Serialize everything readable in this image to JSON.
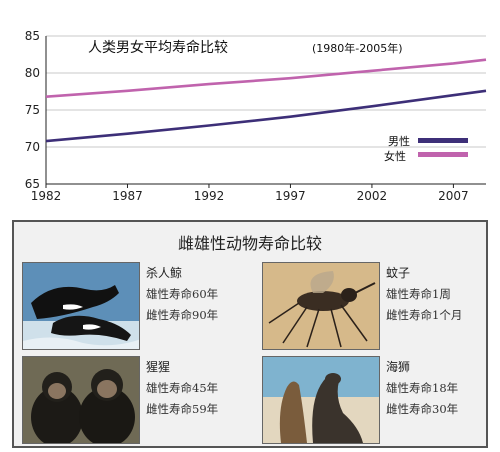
{
  "chart_data": {
    "type": "line",
    "title": "人类男女平均寿命比较",
    "subtitle": "(1980年-2005年)",
    "xlabel": "",
    "ylabel": "",
    "x_ticks": [
      "1982",
      "1987",
      "1992",
      "1997",
      "2002",
      "2007"
    ],
    "y_ticks": [
      "65",
      "70",
      "75",
      "80",
      "85"
    ],
    "xlim": [
      1982,
      2009
    ],
    "ylim": [
      65,
      85
    ],
    "grid": "horizontal",
    "legend_position": "lower-right",
    "series": [
      {
        "name": "男性",
        "color": "#3d2f78",
        "x": [
          1982,
          1987,
          1992,
          1997,
          2002,
          2007,
          2009
        ],
        "y": [
          70.8,
          71.8,
          72.9,
          74.1,
          75.5,
          77.0,
          77.6
        ]
      },
      {
        "name": "女性",
        "color": "#c063ad",
        "x": [
          1982,
          1987,
          1992,
          1997,
          2002,
          2007,
          2009
        ],
        "y": [
          76.8,
          77.6,
          78.5,
          79.3,
          80.3,
          81.3,
          81.8
        ]
      }
    ]
  },
  "legend": {
    "male": "男性",
    "female": "女性"
  },
  "panel": {
    "title": "雌雄性动物寿命比较",
    "animals": [
      {
        "name": "杀人鲸",
        "male": "雄性寿命60年",
        "female": "雌性寿命90年",
        "photo": "orca-photo"
      },
      {
        "name": "蚊子",
        "male": "雄性寿命1周",
        "female": "雌性寿命1个月",
        "photo": "mosquito-photo"
      },
      {
        "name": "猩猩",
        "male": "雄性寿命45年",
        "female": "雌性寿命59年",
        "photo": "chimpanzee-photo"
      },
      {
        "name": "海狮",
        "male": "雄性寿命18年",
        "female": "雌性寿命30年",
        "photo": "sea-lion-photo"
      }
    ]
  }
}
